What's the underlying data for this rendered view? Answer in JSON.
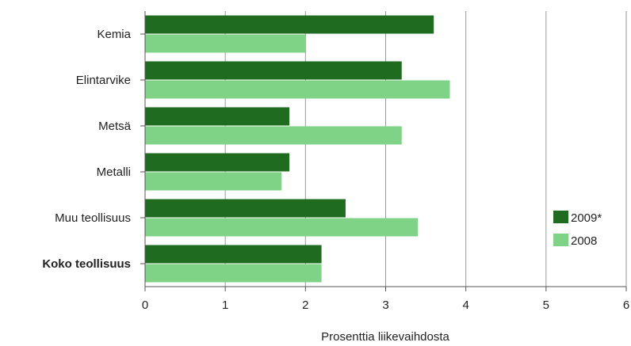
{
  "chart_data": {
    "type": "bar",
    "orientation": "horizontal",
    "categories": [
      "Kemia",
      "Elintarvike",
      "Metsä",
      "Metalli",
      "Muu teollisuus",
      "Koko teollisuus"
    ],
    "emphasized_category": "Koko teollisuus",
    "series": [
      {
        "name": "2009*",
        "color": "#1f6b1f",
        "values": [
          3.6,
          3.2,
          1.8,
          1.8,
          2.5,
          2.2
        ]
      },
      {
        "name": "2008",
        "color": "#7ed387",
        "values": [
          2.0,
          3.8,
          3.2,
          1.7,
          3.4,
          2.2
        ]
      }
    ],
    "xlabel": "Prosenttia liikevaihdosta",
    "ylabel": "",
    "xlim": [
      0,
      6
    ],
    "xticks": [
      "0",
      "1",
      "2",
      "3",
      "4",
      "5",
      "6"
    ],
    "grid": "vertical",
    "legend": "right"
  }
}
